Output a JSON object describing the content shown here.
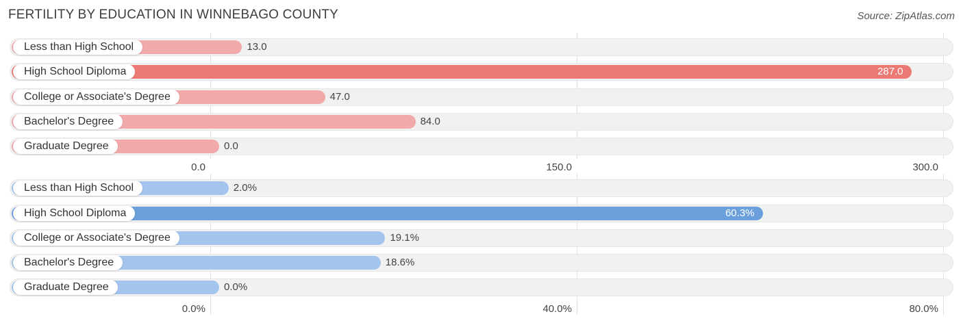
{
  "header": {
    "title": "FERTILITY BY EDUCATION IN WINNEBAGO COUNTY",
    "source": "Source: ZipAtlas.com"
  },
  "chart_data": [
    {
      "type": "bar",
      "orientation": "horizontal",
      "categories": [
        "Less than High School",
        "High School Diploma",
        "College or Associate's Degree",
        "Bachelor's Degree",
        "Graduate Degree"
      ],
      "values": [
        13.0,
        287.0,
        47.0,
        84.0,
        0.0
      ],
      "value_labels": [
        "13.0",
        "287.0",
        "47.0",
        "84.0",
        "0.0"
      ],
      "xlim": [
        0,
        300
      ],
      "ticks": [
        0,
        150,
        300
      ],
      "tick_labels": [
        "0.0",
        "150.0",
        "300.0"
      ],
      "colors": {
        "bar": "#f2a9a9",
        "highlight": "#eb7a74"
      },
      "highlight_index": 1,
      "grid": true
    },
    {
      "type": "bar",
      "orientation": "horizontal",
      "categories": [
        "Less than High School",
        "High School Diploma",
        "College or Associate's Degree",
        "Bachelor's Degree",
        "Graduate Degree"
      ],
      "values": [
        2.0,
        60.3,
        19.1,
        18.6,
        0.0
      ],
      "value_labels": [
        "2.0%",
        "60.3%",
        "19.1%",
        "18.6%",
        "0.0%"
      ],
      "xlim": [
        0,
        80
      ],
      "ticks": [
        0,
        40,
        80
      ],
      "tick_labels": [
        "0.0%",
        "40.0%",
        "80.0%"
      ],
      "colors": {
        "bar": "#a3c4ec",
        "highlight": "#6a9fdc"
      },
      "highlight_index": 1,
      "grid": true
    }
  ]
}
